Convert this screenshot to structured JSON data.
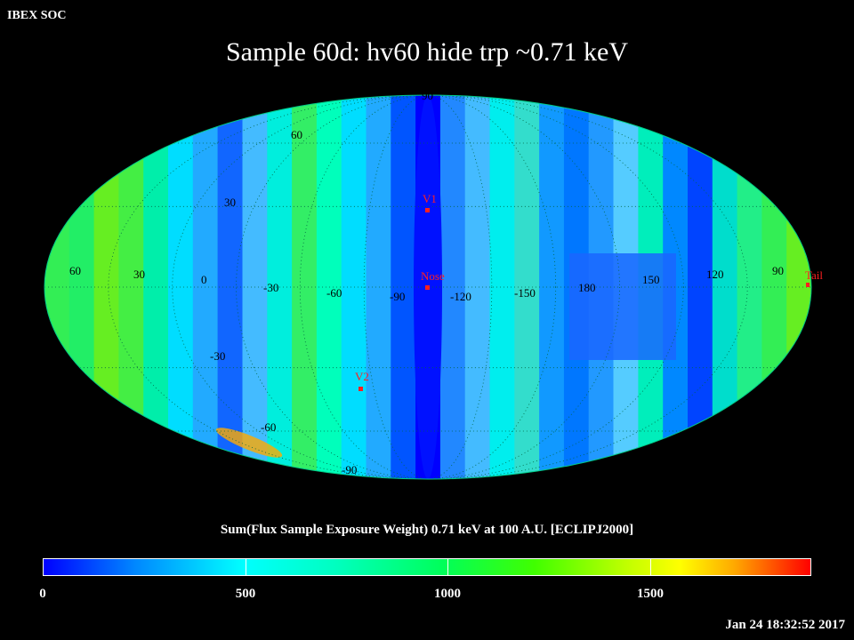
{
  "header": {
    "org": "IBEX SOC"
  },
  "title": "Sample 60d: hv60 hide trp ~0.71 keV",
  "footer": {
    "timestamp": "Jan 24 18:32:52 2017"
  },
  "colorbar": {
    "label": "Sum(Flux Sample Exposure Weight)  0.71 keV at 100 A.U. [ECLIPJ2000]",
    "ticks": [
      "0",
      "500",
      "1000",
      "1500"
    ],
    "range": [
      0,
      1900
    ],
    "colors": [
      "#0000ff",
      "#00ffff",
      "#00ff40",
      "#ffff00",
      "#ff0000"
    ]
  },
  "map": {
    "projection": "Mollweide",
    "longitude_labels": [
      "60",
      "30",
      "0",
      "-30",
      "-60",
      "-90",
      "-120",
      "-150",
      "180",
      "150",
      "120",
      "90"
    ],
    "latitude_labels": [
      "90",
      "60",
      "30",
      "-30",
      "-60",
      "-90"
    ],
    "markers": [
      {
        "label": "V1",
        "color": "#ff2020"
      },
      {
        "label": "Nose",
        "color": "#ff2020"
      },
      {
        "label": "V2",
        "color": "#ff2020"
      },
      {
        "label": "Tail",
        "color": "#ff2020"
      }
    ]
  }
}
